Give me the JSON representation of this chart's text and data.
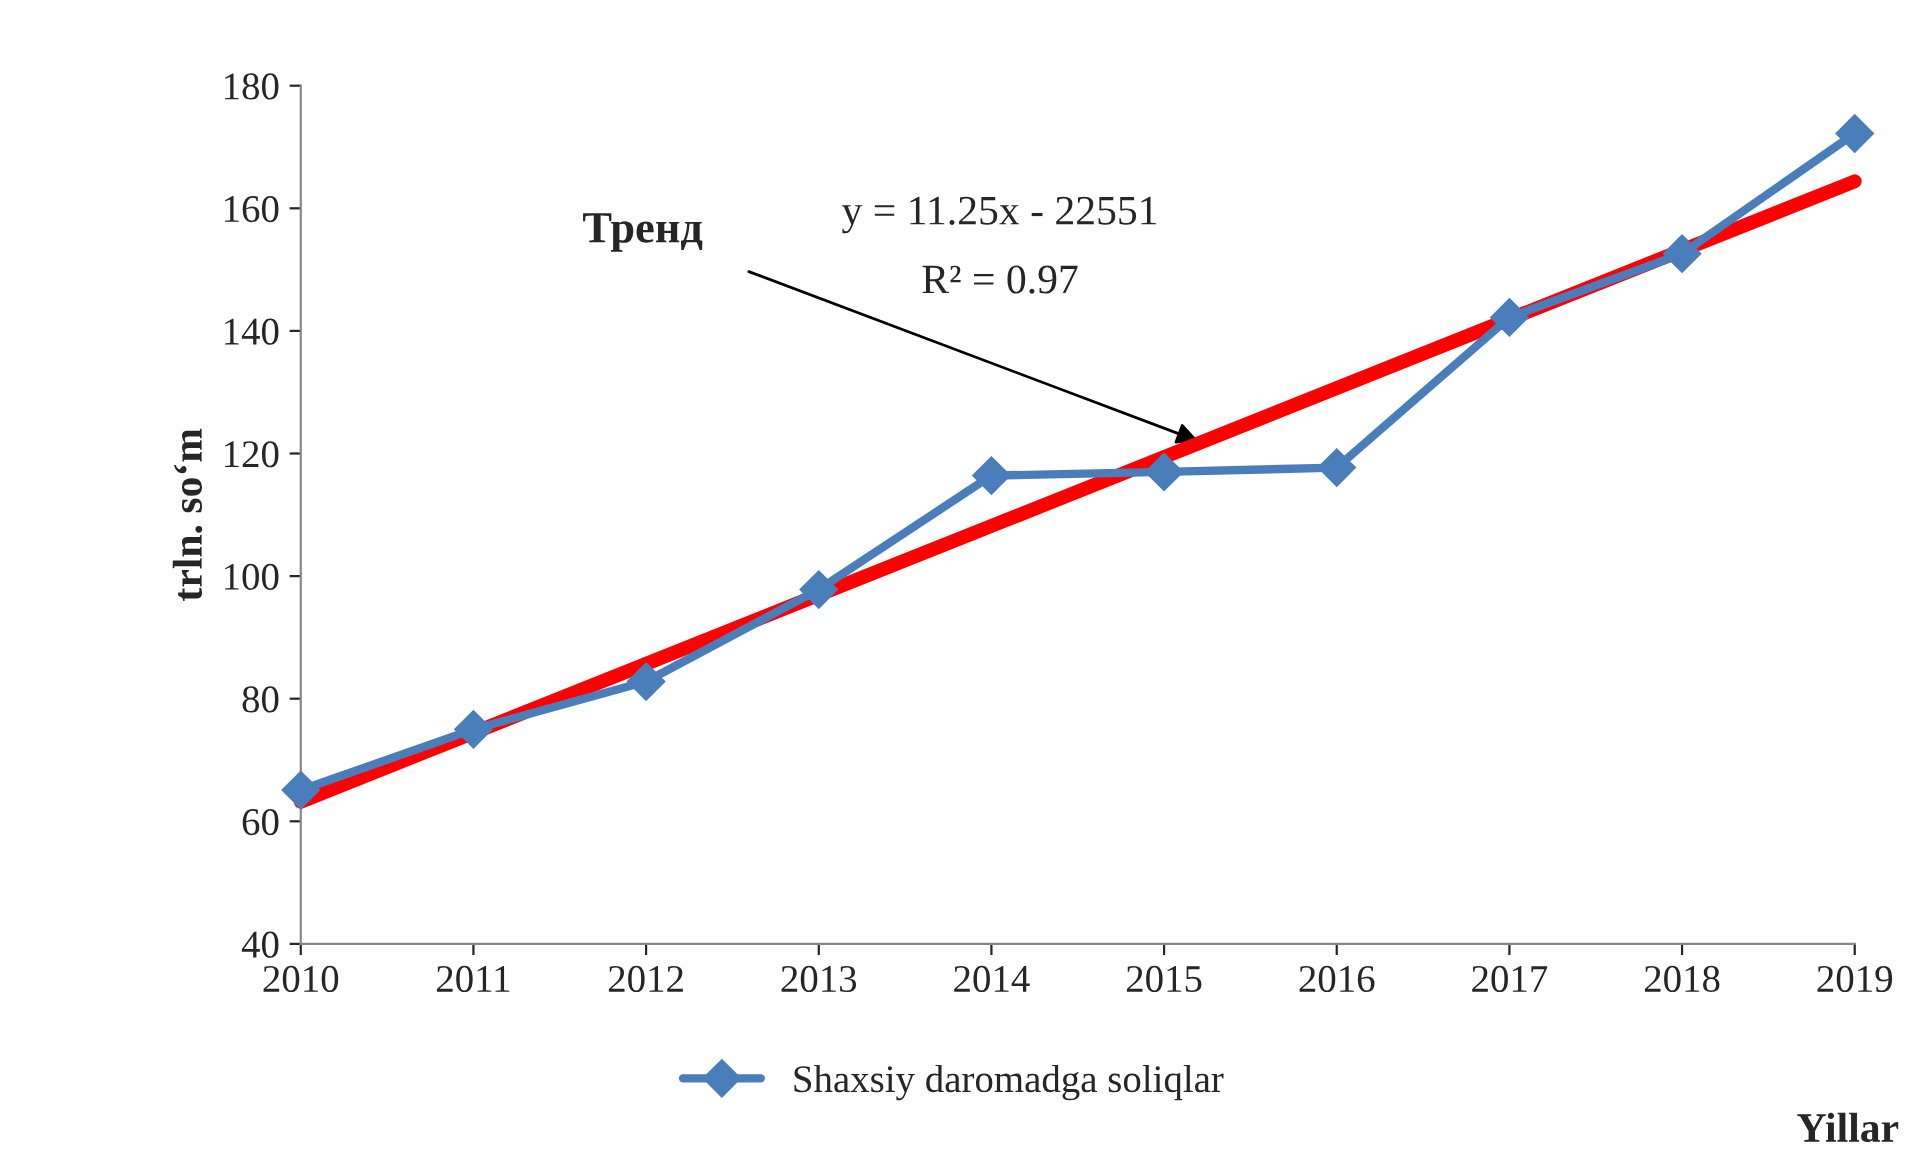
{
  "chart_data": {
    "type": "line",
    "xlabel": "Yillar",
    "ylabel": "trln. so‘m",
    "x": [
      2010,
      2011,
      2012,
      2013,
      2014,
      2015,
      2016,
      2017,
      2018,
      2019
    ],
    "series": [
      {
        "name": "Shaxsiy daromadga soliqlar",
        "color": "#4a7ebb",
        "marker": "diamond",
        "values": [
          65.1,
          75,
          82.8,
          97.8,
          116.4,
          117,
          117.7,
          142.2,
          152.6,
          172.2
        ]
      },
      {
        "type": "line",
        "color": "#ff0000",
        "marker": "none",
        "x": [
          2010,
          2019
        ],
        "values": [
          63.2,
          164.4
        ]
      }
    ],
    "xlim": [
      2010,
      2019
    ],
    "xticks": [
      2010,
      2011,
      2012,
      2013,
      2014,
      2015,
      2016,
      2017,
      2018,
      2019
    ],
    "ylim": [
      40,
      180
    ],
    "yticks": [
      40,
      60,
      80,
      100,
      120,
      140,
      160,
      180
    ],
    "grid": false,
    "legend": "bottom",
    "annotations": [
      {
        "text": "Тренд",
        "x": 2015.2,
        "y": 122
      },
      "y = 11.25x - 22551",
      "R² = 0.97"
    ]
  }
}
